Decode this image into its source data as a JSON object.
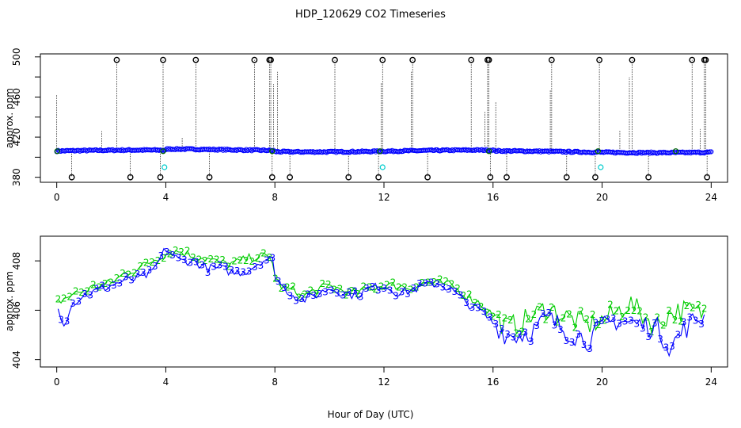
{
  "page_title": "HDP_120629  CO2 Timeseries",
  "xlabel": "Hour of Day (UTC)",
  "colors": {
    "series_blue": "#0000ff",
    "series_green": "#00cc00",
    "cyan": "#00cccc",
    "black": "#000000",
    "dark_green": "#006600"
  },
  "chart_data": [
    {
      "type": "scatter",
      "title": "",
      "ylabel": "approx. ppm",
      "xlim": [
        -0.6,
        24.6
      ],
      "ylim": [
        375,
        503
      ],
      "xticks": [
        0,
        4,
        8,
        12,
        16,
        20,
        24
      ],
      "yticks": [
        380,
        420,
        460,
        500
      ],
      "yticks_minor": [
        400,
        440,
        480
      ],
      "baseline_level": 406,
      "baseline_color": "blue",
      "saturated_high": [
        2.2,
        3.9,
        5.1,
        7.25,
        7.8,
        7.85,
        10.2,
        11.95,
        13.05,
        15.2,
        15.8,
        15.85,
        18.15,
        19.9,
        21.1,
        23.3,
        23.75,
        23.8
      ],
      "saturated_low": [
        0.55,
        2.7,
        3.8,
        5.6,
        7.9,
        8.55,
        10.7,
        11.8,
        13.6,
        15.9,
        16.5,
        18.7,
        19.75,
        21.7,
        23.85
      ],
      "spikes": [
        {
          "x": 0.0,
          "y": 462
        },
        {
          "x": 1.65,
          "y": 426
        },
        {
          "x": 4.6,
          "y": 420
        },
        {
          "x": 7.95,
          "y": 473
        },
        {
          "x": 8.1,
          "y": 485
        },
        {
          "x": 11.9,
          "y": 474
        },
        {
          "x": 13.0,
          "y": 485
        },
        {
          "x": 15.7,
          "y": 445
        },
        {
          "x": 16.1,
          "y": 455
        },
        {
          "x": 18.1,
          "y": 467
        },
        {
          "x": 20.65,
          "y": 427
        },
        {
          "x": 21.0,
          "y": 480
        },
        {
          "x": 23.6,
          "y": 428
        }
      ],
      "cyan_points": [
        {
          "x": 3.95,
          "y": 390
        },
        {
          "x": 11.95,
          "y": 390
        },
        {
          "x": 19.95,
          "y": 390
        }
      ],
      "green_markers": [
        0.02,
        3.9,
        7.9,
        11.85,
        15.85,
        19.85,
        22.7
      ]
    },
    {
      "type": "line",
      "title": "",
      "ylabel": "approx. ppm",
      "xlim": [
        -0.6,
        24.6
      ],
      "ylim": [
        403.7,
        409.0
      ],
      "xticks": [
        0,
        4,
        8,
        12,
        16,
        20,
        24
      ],
      "yticks": [
        404,
        406,
        408
      ],
      "series": [
        {
          "name": "2",
          "color": "green",
          "x": [
            0,
            0.5,
            1,
            1.5,
            2,
            2.5,
            3,
            3.5,
            4,
            4.5,
            5,
            5.5,
            6,
            6.5,
            7,
            7.5,
            7.9,
            8,
            8.3,
            8.7,
            9,
            9.5,
            10,
            10.5,
            11,
            11.5,
            12,
            12.5,
            13,
            13.5,
            14,
            14.5,
            15,
            15.5,
            16,
            16.5,
            17,
            17.5,
            18,
            18.5,
            19,
            19.5,
            20,
            20.5,
            21,
            21.5,
            22,
            22.5,
            23,
            23.5
          ],
          "y": [
            406.3,
            406.6,
            406.8,
            407.0,
            407.1,
            407.5,
            407.7,
            408.0,
            408.3,
            408.4,
            408.2,
            408.1,
            407.9,
            407.9,
            408.1,
            408.2,
            408.1,
            407.3,
            406.9,
            406.8,
            406.6,
            406.8,
            407.0,
            406.8,
            406.7,
            406.9,
            407.0,
            407.0,
            406.9,
            407.1,
            407.1,
            407.0,
            406.6,
            406.3,
            405.8,
            405.3,
            405.5,
            405.8,
            406.1,
            405.8,
            405.6,
            405.4,
            405.6,
            405.9,
            406.3,
            405.8,
            405.4,
            405.9,
            406.0,
            405.9
          ]
        },
        {
          "name": "3",
          "color": "blue",
          "x": [
            0,
            0.3,
            0.5,
            1,
            1.5,
            2,
            2.5,
            3,
            3.5,
            4,
            4.5,
            5,
            5.5,
            6,
            6.5,
            7,
            7.5,
            7.9,
            8,
            8.3,
            8.7,
            9,
            9.5,
            10,
            10.5,
            11,
            11.5,
            12,
            12.5,
            13,
            13.5,
            14,
            14.5,
            15,
            15.5,
            16,
            16.5,
            17,
            17.5,
            18,
            18.5,
            19,
            19.5,
            20,
            20.5,
            21,
            21.5,
            22,
            22.5,
            23,
            23.5
          ],
          "y": [
            406.2,
            405.4,
            406.2,
            406.6,
            406.8,
            407.0,
            407.2,
            407.3,
            407.5,
            408.5,
            408.0,
            408.0,
            407.7,
            407.7,
            407.5,
            407.6,
            408.0,
            408.1,
            407.4,
            406.9,
            406.6,
            406.4,
            406.6,
            406.9,
            406.7,
            406.6,
            406.9,
            407.0,
            406.7,
            406.8,
            407.0,
            407.1,
            406.8,
            406.3,
            406.0,
            405.5,
            405.0,
            405.0,
            405.2,
            405.7,
            405.3,
            405.0,
            404.8,
            405.3,
            405.6,
            405.5,
            405.4,
            405.3,
            404.5,
            405.2,
            405.7
          ]
        }
      ]
    }
  ]
}
